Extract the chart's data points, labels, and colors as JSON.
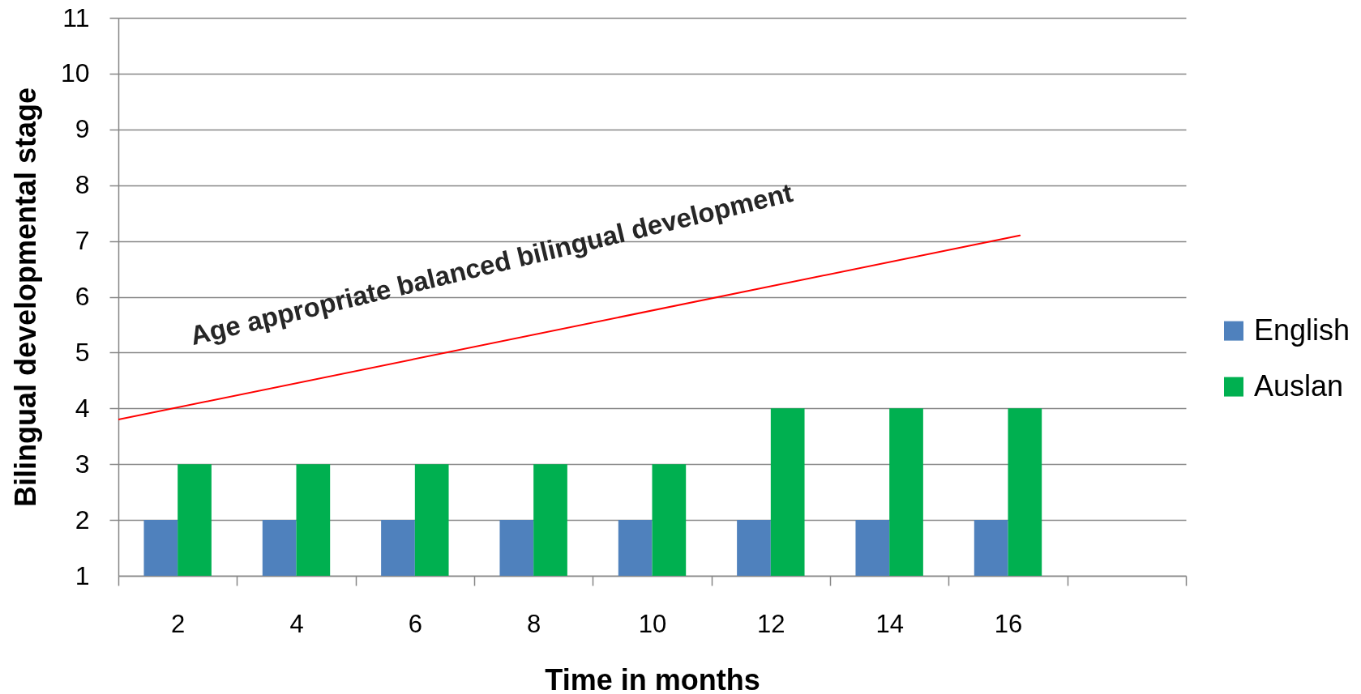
{
  "chart_data": {
    "type": "bar",
    "xlabel": "Time in months",
    "ylabel": "Bilingual developmental stage",
    "x": [
      2,
      4,
      6,
      8,
      10,
      12,
      14,
      16
    ],
    "xlim": [
      1,
      19
    ],
    "xticks": [
      {
        "value": 1,
        "label": null
      },
      2,
      {
        "value": 3,
        "label": null
      },
      4,
      {
        "value": 5,
        "label": null
      },
      6,
      {
        "value": 7,
        "label": null
      },
      8,
      {
        "value": 9,
        "label": null
      },
      10,
      {
        "value": 11,
        "label": null
      },
      12,
      {
        "value": 13,
        "label": null
      },
      14,
      {
        "value": 15,
        "label": null
      },
      16,
      {
        "value": 17,
        "label": null
      },
      {
        "value": 19,
        "label": null
      }
    ],
    "ylim": [
      1,
      11
    ],
    "yticks": [
      1,
      2,
      3,
      4,
      5,
      6,
      7,
      8,
      9,
      10,
      11
    ],
    "series": [
      {
        "name": "English",
        "color": "#4f81bd",
        "values": [
          2,
          2,
          2,
          2,
          2,
          2,
          2,
          2
        ]
      },
      {
        "name": "Auslan",
        "color": "#00b050",
        "values": [
          3,
          3,
          3,
          3,
          3,
          4,
          4,
          4
        ]
      },
      {
        "type": "line",
        "name": "Age appropriate balanced bilingual development",
        "color": "#ff0000",
        "x": [
          1,
          16.2
        ],
        "values": [
          3.8,
          7.1
        ]
      }
    ],
    "grid": "y",
    "legend": "right"
  }
}
